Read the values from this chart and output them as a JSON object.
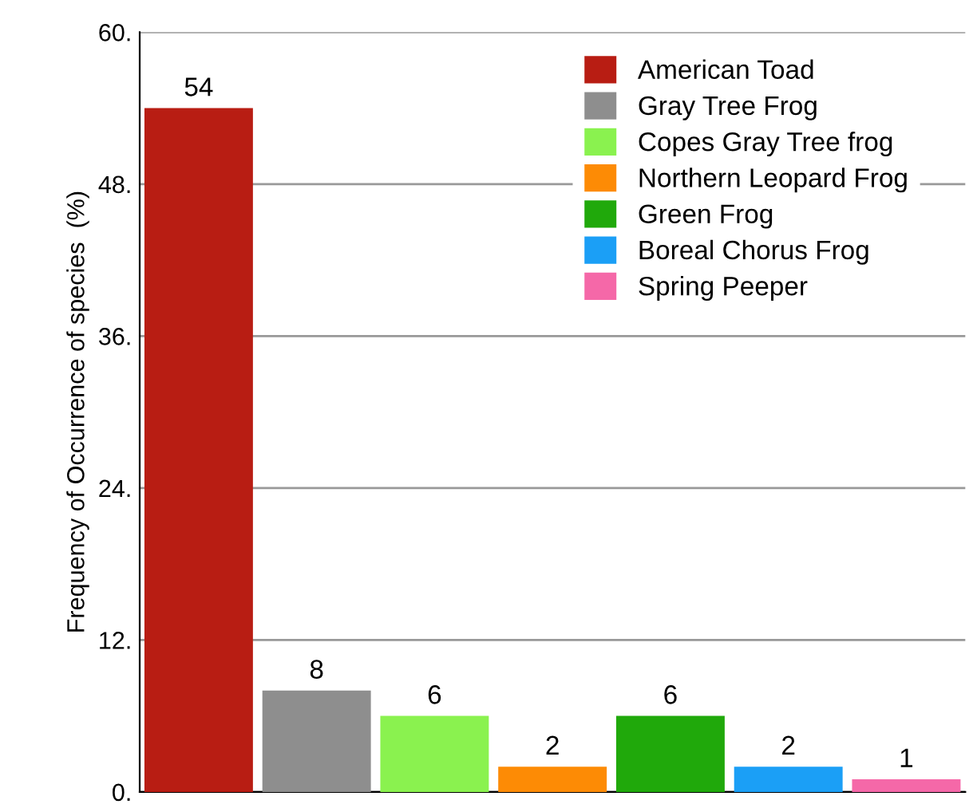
{
  "chart_data": {
    "type": "bar",
    "ylabel": "Frequency of Occurrence of species  (%)",
    "categories": [
      null,
      null,
      null,
      null,
      null,
      null,
      null
    ],
    "series": [
      {
        "name": "American Toad",
        "color": "#b81d13",
        "values": [
          54,
          null,
          null,
          null,
          null,
          null,
          null
        ]
      },
      {
        "name": "Gray Tree Frog",
        "color": "#8e8e8e",
        "values": [
          null,
          8,
          null,
          null,
          null,
          null,
          null
        ]
      },
      {
        "name": "Copes Gray Tree frog",
        "color": "#8af24f",
        "values": [
          null,
          null,
          6,
          null,
          null,
          null,
          null
        ]
      },
      {
        "name": "Northern Leopard Frog",
        "color": "#fd8b05",
        "values": [
          null,
          null,
          null,
          2,
          null,
          null,
          null
        ]
      },
      {
        "name": "Green Frog",
        "color": "#20a90b",
        "values": [
          null,
          null,
          null,
          null,
          6,
          null,
          null
        ]
      },
      {
        "name": "Boreal Chorus Frog",
        "color": "#1b9ff6",
        "values": [
          null,
          null,
          null,
          null,
          null,
          2,
          null
        ]
      },
      {
        "name": "Spring Peeper",
        "color": "#f568a8",
        "values": [
          null,
          null,
          null,
          null,
          null,
          null,
          1
        ]
      }
    ],
    "ylim": [
      0,
      60
    ],
    "yticks": [
      {
        "value": 0,
        "label": "0."
      },
      {
        "value": 12,
        "label": "12."
      },
      {
        "value": 24,
        "label": "24."
      },
      {
        "value": 36,
        "label": "36."
      },
      {
        "value": 48,
        "label": "48."
      },
      {
        "value": 60,
        "label": "60."
      }
    ],
    "grid": "y",
    "legend": "top right",
    "data_labels": true
  }
}
